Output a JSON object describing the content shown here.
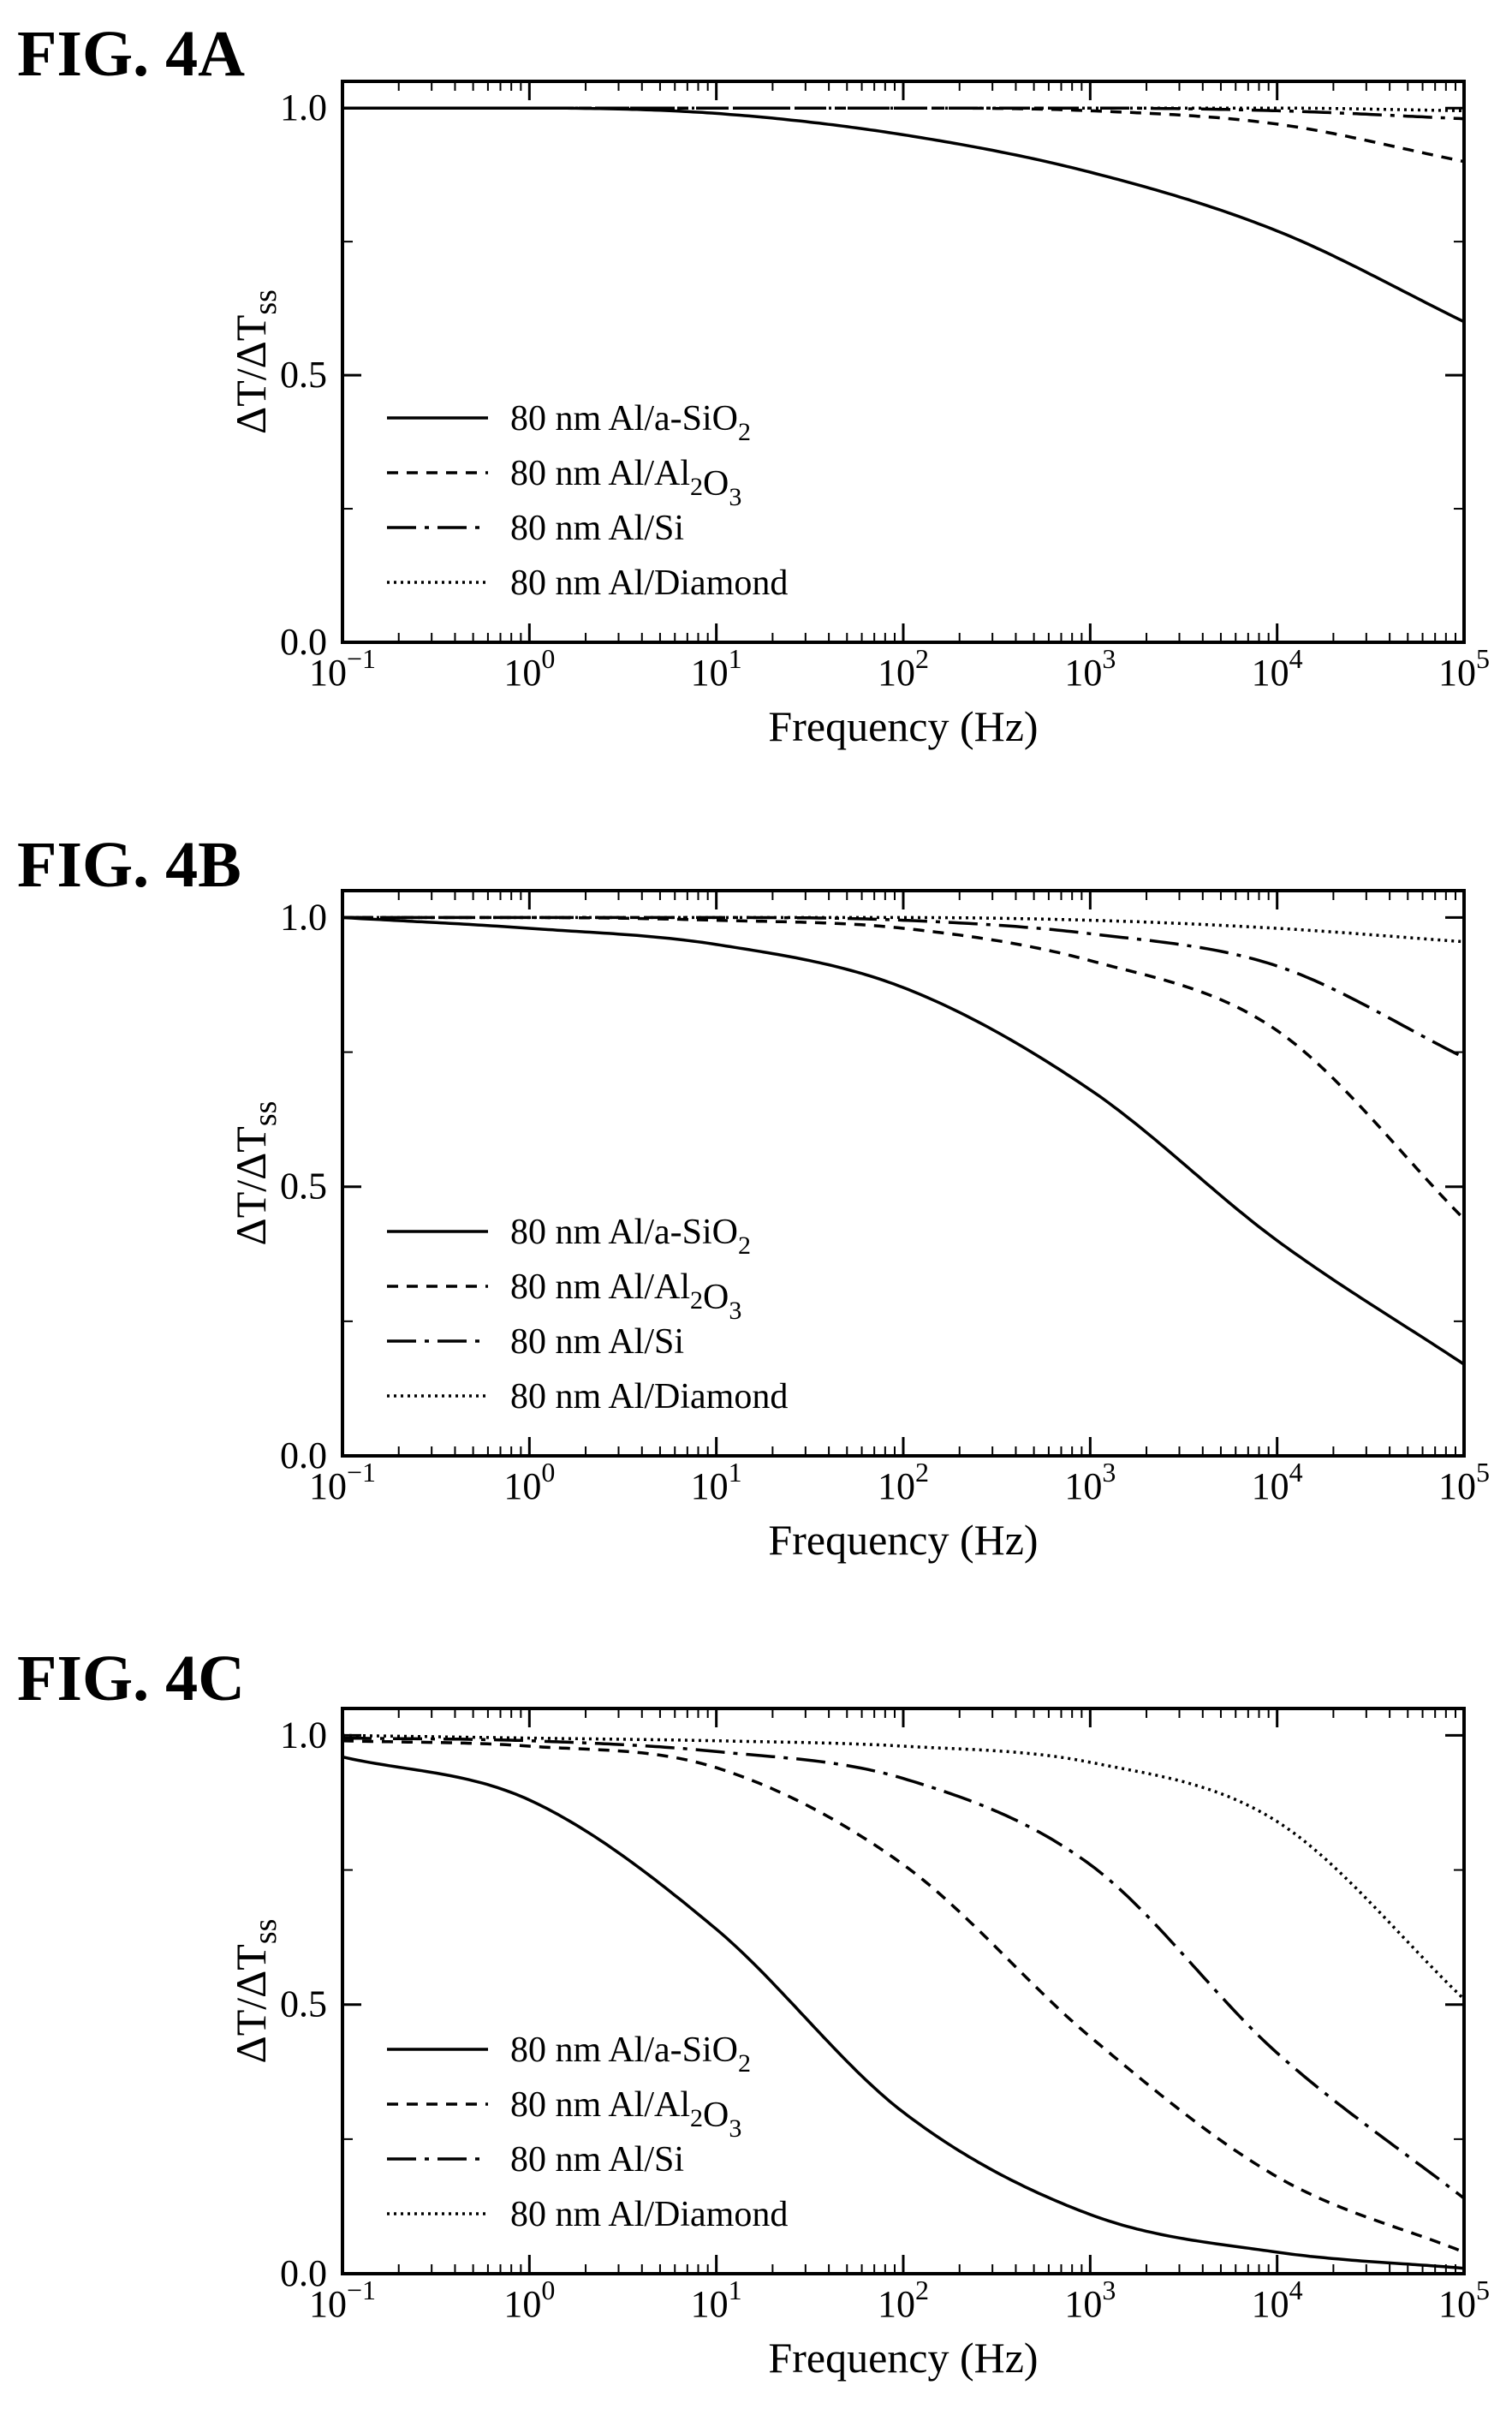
{
  "figures": [
    {
      "label": "FIG. 4A"
    },
    {
      "label": "FIG. 4B"
    },
    {
      "label": "FIG. 4C"
    }
  ],
  "legend_entries": [
    "80 nm Al/a-SiO2",
    "80 nm Al/Al2O3",
    "80 nm Al/Si",
    "80 nm Al/Diamond"
  ],
  "chart_data": [
    {
      "type": "line",
      "figure": "FIG. 4A",
      "xlabel": "Frequency (Hz)",
      "ylabel": "ΔT/ΔTss",
      "xscale": "log",
      "xlim": [
        0.1,
        100000
      ],
      "ylim": [
        0,
        1.05
      ],
      "x_ticks": [
        "10^-1",
        "10^0",
        "10^1",
        "10^2",
        "10^3",
        "10^4",
        "10^5"
      ],
      "y_ticks": [
        "0.0",
        "0.5",
        "1.0"
      ],
      "legend_position": "bottom-left",
      "x": [
        0.1,
        1,
        10,
        100,
        1000,
        10000,
        100000
      ],
      "series": [
        {
          "name": "80 nm Al/a-SiO2",
          "style": "solid",
          "values": [
            1.0,
            1.0,
            0.99,
            0.95,
            0.88,
            0.77,
            0.6
          ]
        },
        {
          "name": "80 nm Al/Al2O3",
          "style": "dashed",
          "values": [
            1.0,
            1.0,
            1.0,
            1.0,
            0.995,
            0.97,
            0.9
          ]
        },
        {
          "name": "80 nm Al/Si",
          "style": "dash-dot",
          "values": [
            1.0,
            1.0,
            1.0,
            1.0,
            1.0,
            0.995,
            0.98
          ]
        },
        {
          "name": "80 nm Al/Diamond",
          "style": "dotted",
          "values": [
            1.0,
            1.0,
            1.0,
            1.0,
            1.0,
            1.0,
            0.995
          ]
        }
      ]
    },
    {
      "type": "line",
      "figure": "FIG. 4B",
      "xlabel": "Frequency (Hz)",
      "ylabel": "ΔT/ΔTss",
      "xscale": "log",
      "xlim": [
        0.1,
        100000
      ],
      "ylim": [
        0,
        1.05
      ],
      "x_ticks": [
        "10^-1",
        "10^0",
        "10^1",
        "10^2",
        "10^3",
        "10^4",
        "10^5"
      ],
      "y_ticks": [
        "0.0",
        "0.5",
        "1.0"
      ],
      "legend_position": "bottom-left",
      "x": [
        0.1,
        1,
        10,
        100,
        1000,
        10000,
        100000
      ],
      "series": [
        {
          "name": "80 nm Al/a-SiO2",
          "style": "solid",
          "values": [
            1.0,
            0.98,
            0.95,
            0.87,
            0.68,
            0.4,
            0.17
          ]
        },
        {
          "name": "80 nm Al/Al2O3",
          "style": "dashed",
          "values": [
            1.0,
            1.0,
            0.995,
            0.98,
            0.92,
            0.79,
            0.44
          ]
        },
        {
          "name": "80 nm Al/Si",
          "style": "dash-dot",
          "values": [
            1.0,
            1.0,
            1.0,
            0.995,
            0.97,
            0.91,
            0.74
          ]
        },
        {
          "name": "80 nm Al/Diamond",
          "style": "dotted",
          "values": [
            1.0,
            1.0,
            1.0,
            1.0,
            0.995,
            0.98,
            0.955
          ]
        }
      ]
    },
    {
      "type": "line",
      "figure": "FIG. 4C",
      "xlabel": "Frequency (Hz)",
      "ylabel": "ΔT/ΔTss",
      "xscale": "log",
      "xlim": [
        0.1,
        100000
      ],
      "ylim": [
        0,
        1.05
      ],
      "x_ticks": [
        "10^-1",
        "10^0",
        "10^1",
        "10^2",
        "10^3",
        "10^4",
        "10^5"
      ],
      "y_ticks": [
        "0.0",
        "0.5",
        "1.0"
      ],
      "legend_position": "bottom-left",
      "x": [
        0.1,
        1,
        10,
        100,
        1000,
        10000,
        100000
      ],
      "series": [
        {
          "name": "80 nm Al/a-SiO2",
          "style": "solid",
          "values": [
            0.96,
            0.88,
            0.64,
            0.3,
            0.11,
            0.04,
            0.01
          ]
        },
        {
          "name": "80 nm Al/Al2O3",
          "style": "dashed",
          "values": [
            0.99,
            0.98,
            0.94,
            0.76,
            0.44,
            0.18,
            0.04
          ]
        },
        {
          "name": "80 nm Al/Si",
          "style": "dash-dot",
          "values": [
            0.995,
            0.99,
            0.97,
            0.92,
            0.76,
            0.41,
            0.14
          ]
        },
        {
          "name": "80 nm Al/Diamond",
          "style": "dotted",
          "values": [
            1.0,
            0.995,
            0.99,
            0.98,
            0.95,
            0.84,
            0.51
          ]
        }
      ]
    }
  ]
}
